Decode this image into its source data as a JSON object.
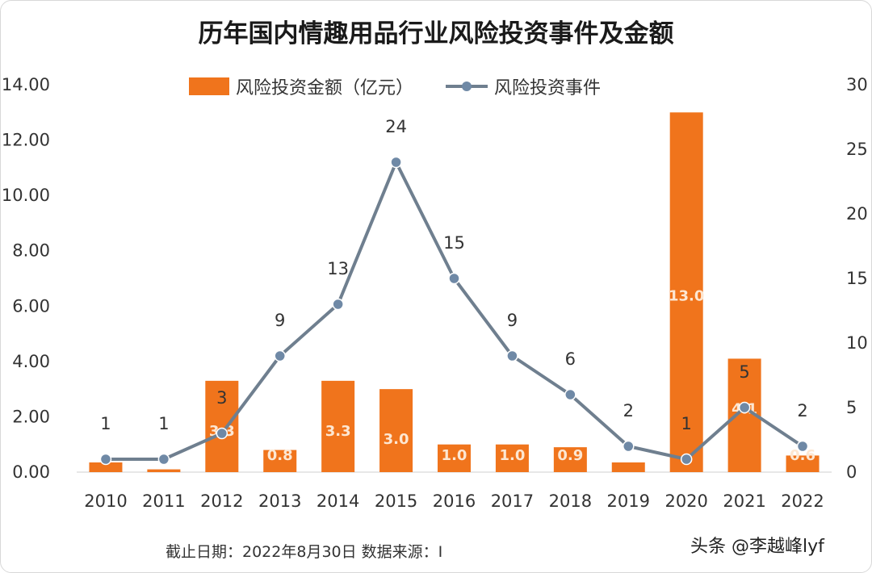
{
  "chart_data": {
    "type": "bar",
    "title": "历年国内情趣用品行业风险投资事件及金额",
    "categories": [
      "2010",
      "2011",
      "2012",
      "2013",
      "2014",
      "2015",
      "2016",
      "2017",
      "2018",
      "2019",
      "2020",
      "2021",
      "2022"
    ],
    "series": [
      {
        "name": "风险投资金额（亿元）",
        "type": "bar",
        "axis": "left",
        "values": [
          0.35,
          0.1,
          3.3,
          0.8,
          3.3,
          3.0,
          1.0,
          1.0,
          0.9,
          0.35,
          13.0,
          4.1,
          0.6
        ],
        "labels": [
          "",
          "",
          "3.3",
          "0.8",
          "3.3",
          "3.0",
          "1.0",
          "1.0",
          "0.9",
          "",
          "13.0",
          "4.1",
          "0.6"
        ]
      },
      {
        "name": "风险投资事件",
        "type": "line",
        "axis": "right",
        "values": [
          1,
          1,
          3,
          9,
          13,
          24,
          15,
          9,
          6,
          2,
          1,
          5,
          2
        ],
        "labels": [
          "1",
          "1",
          "3",
          "9",
          "13",
          "24",
          "15",
          "9",
          "6",
          "2",
          "1",
          "5",
          "2"
        ]
      }
    ],
    "y_left": {
      "range": [
        0,
        14
      ],
      "ticks": [
        "0.00",
        "2.00",
        "4.00",
        "6.00",
        "8.00",
        "10.00",
        "12.00",
        "14.00"
      ]
    },
    "y_right": {
      "range": [
        0,
        30
      ],
      "ticks": [
        "0",
        "5",
        "10",
        "15",
        "20",
        "25",
        "30"
      ]
    },
    "legend": "top-center",
    "grid": false
  },
  "colors": {
    "bar": "#f0741c",
    "line": "#6f7f8f",
    "point": "#6f89a6"
  },
  "footnote": "截止日期：2022年8月30日    数据来源：I",
  "watermark": "头条 @李越峰lyf"
}
